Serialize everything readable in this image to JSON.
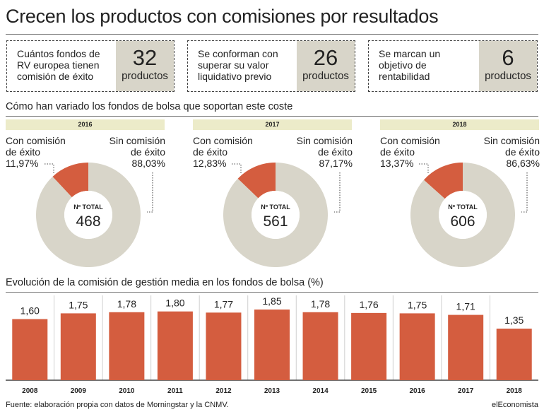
{
  "title": "Crecen los productos con comisiones por resultados",
  "boxes": [
    {
      "text": [
        "Cuántos fondos de",
        "RV europea tienen",
        "comisión de éxito"
      ],
      "number": "32",
      "unit": "productos"
    },
    {
      "text": [
        "Se conforman con",
        "superar su valor",
        "liquidativo previo"
      ],
      "number": "26",
      "unit": "productos"
    },
    {
      "text": [
        "Se marcan un",
        "objetivo de",
        "rentabilidad"
      ],
      "number": "6",
      "unit": "productos"
    }
  ],
  "donut_section_title": "Cómo han variado los fondos de bolsa que soportan este coste",
  "bar_section_title": "Evolución de la comisión de gestión media en los fondos de bolsa (%)",
  "footer": "Fuente: elaboración propia con datos de Morningstar y la CNMV.",
  "brand": "elEconomista",
  "colors": {
    "accent": "#d45d3f",
    "neutral": "#d8d5c9",
    "band": "#ecebc9"
  },
  "chart_data": [
    {
      "type": "pie",
      "title": "2016",
      "center_label": "Nº TOTAL",
      "total": "468",
      "slices": [
        {
          "label": [
            "Con comisión",
            "de éxito"
          ],
          "value": 11.97,
          "display": "11,97%"
        },
        {
          "label": [
            "Sin comisión",
            "de éxito"
          ],
          "value": 88.03,
          "display": "88,03%"
        }
      ]
    },
    {
      "type": "pie",
      "title": "2017",
      "center_label": "Nº TOTAL",
      "total": "561",
      "slices": [
        {
          "label": [
            "Con comisión",
            "de éxito"
          ],
          "value": 12.83,
          "display": "12,83%"
        },
        {
          "label": [
            "Sin comisión",
            "de éxito"
          ],
          "value": 87.17,
          "display": "87,17%"
        }
      ]
    },
    {
      "type": "pie",
      "title": "2018",
      "center_label": "Nº TOTAL",
      "total": "606",
      "slices": [
        {
          "label": [
            "Con comisión",
            "de éxito"
          ],
          "value": 13.37,
          "display": "13,37%"
        },
        {
          "label": [
            "Sin comisión",
            "de éxito"
          ],
          "value": 86.63,
          "display": "86,63%"
        }
      ]
    },
    {
      "type": "bar",
      "categories": [
        "2008",
        "2009",
        "2010",
        "2011",
        "2012",
        "2013",
        "2014",
        "2015",
        "2016",
        "2017",
        "2018"
      ],
      "values": [
        1.6,
        1.75,
        1.78,
        1.8,
        1.77,
        1.85,
        1.78,
        1.76,
        1.75,
        1.71,
        1.35
      ],
      "value_labels": [
        "1,60",
        "1,75",
        "1,78",
        "1,80",
        "1,77",
        "1,85",
        "1,78",
        "1,76",
        "1,75",
        "1,71",
        "1,35"
      ],
      "ylim": [
        0,
        2
      ]
    }
  ]
}
